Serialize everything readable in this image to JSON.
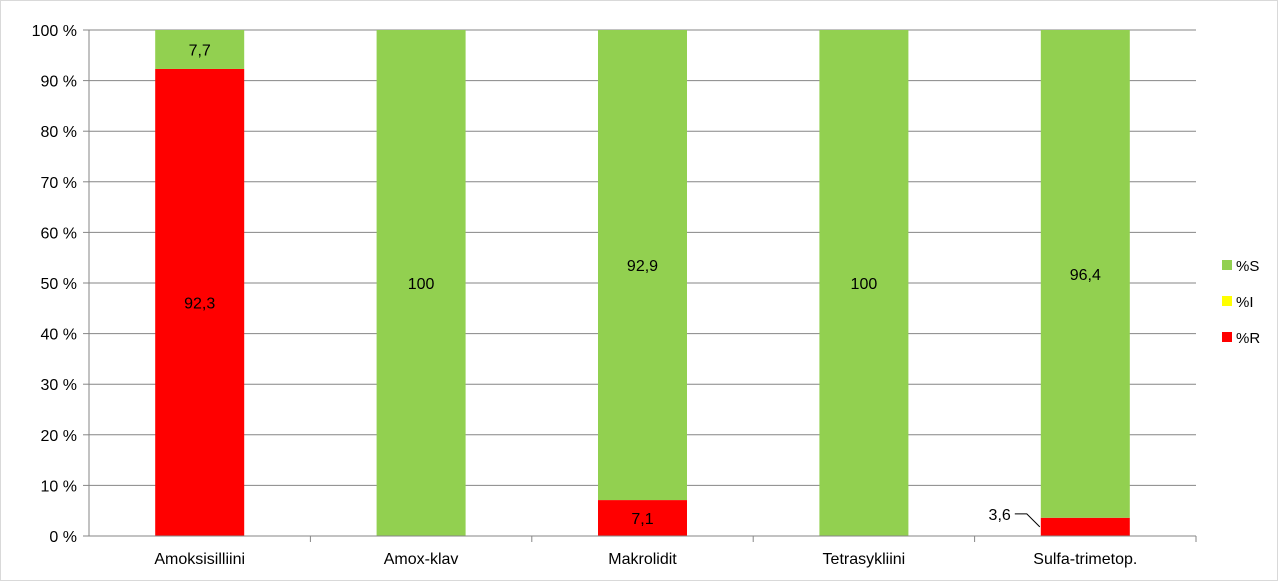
{
  "chart_data": {
    "type": "bar",
    "stacked": true,
    "percent_stacked": true,
    "categories": [
      "Amoksisilliini",
      "Amox-klav",
      "Makrolidit",
      "Tetrasykliini",
      "Sulfa-trimetop."
    ],
    "series": [
      {
        "name": "%R",
        "color": "#ff0000",
        "values": [
          92.3,
          0,
          7.1,
          0,
          3.6
        ],
        "labels": [
          "92,3",
          "",
          "7,1",
          "",
          "3,6"
        ]
      },
      {
        "name": "%I",
        "color": "#ffff00",
        "values": [
          0,
          0,
          0,
          0,
          0
        ],
        "labels": [
          "",
          "",
          "",
          "",
          ""
        ]
      },
      {
        "name": "%S",
        "color": "#92d050",
        "values": [
          7.7,
          100,
          92.9,
          100,
          96.4
        ],
        "labels": [
          "7,7",
          "100",
          "92,9",
          "100",
          "96,4"
        ]
      }
    ],
    "ylim": [
      0,
      100
    ],
    "y_ticks": [
      "0 %",
      "10 %",
      "20 %",
      "30 %",
      "40 %",
      "50 %",
      "60 %",
      "70 %",
      "80 %",
      "90 %",
      "100 %"
    ],
    "grid": true,
    "legend_position": "right",
    "legend_order": [
      "%S",
      "%I",
      "%R"
    ]
  }
}
